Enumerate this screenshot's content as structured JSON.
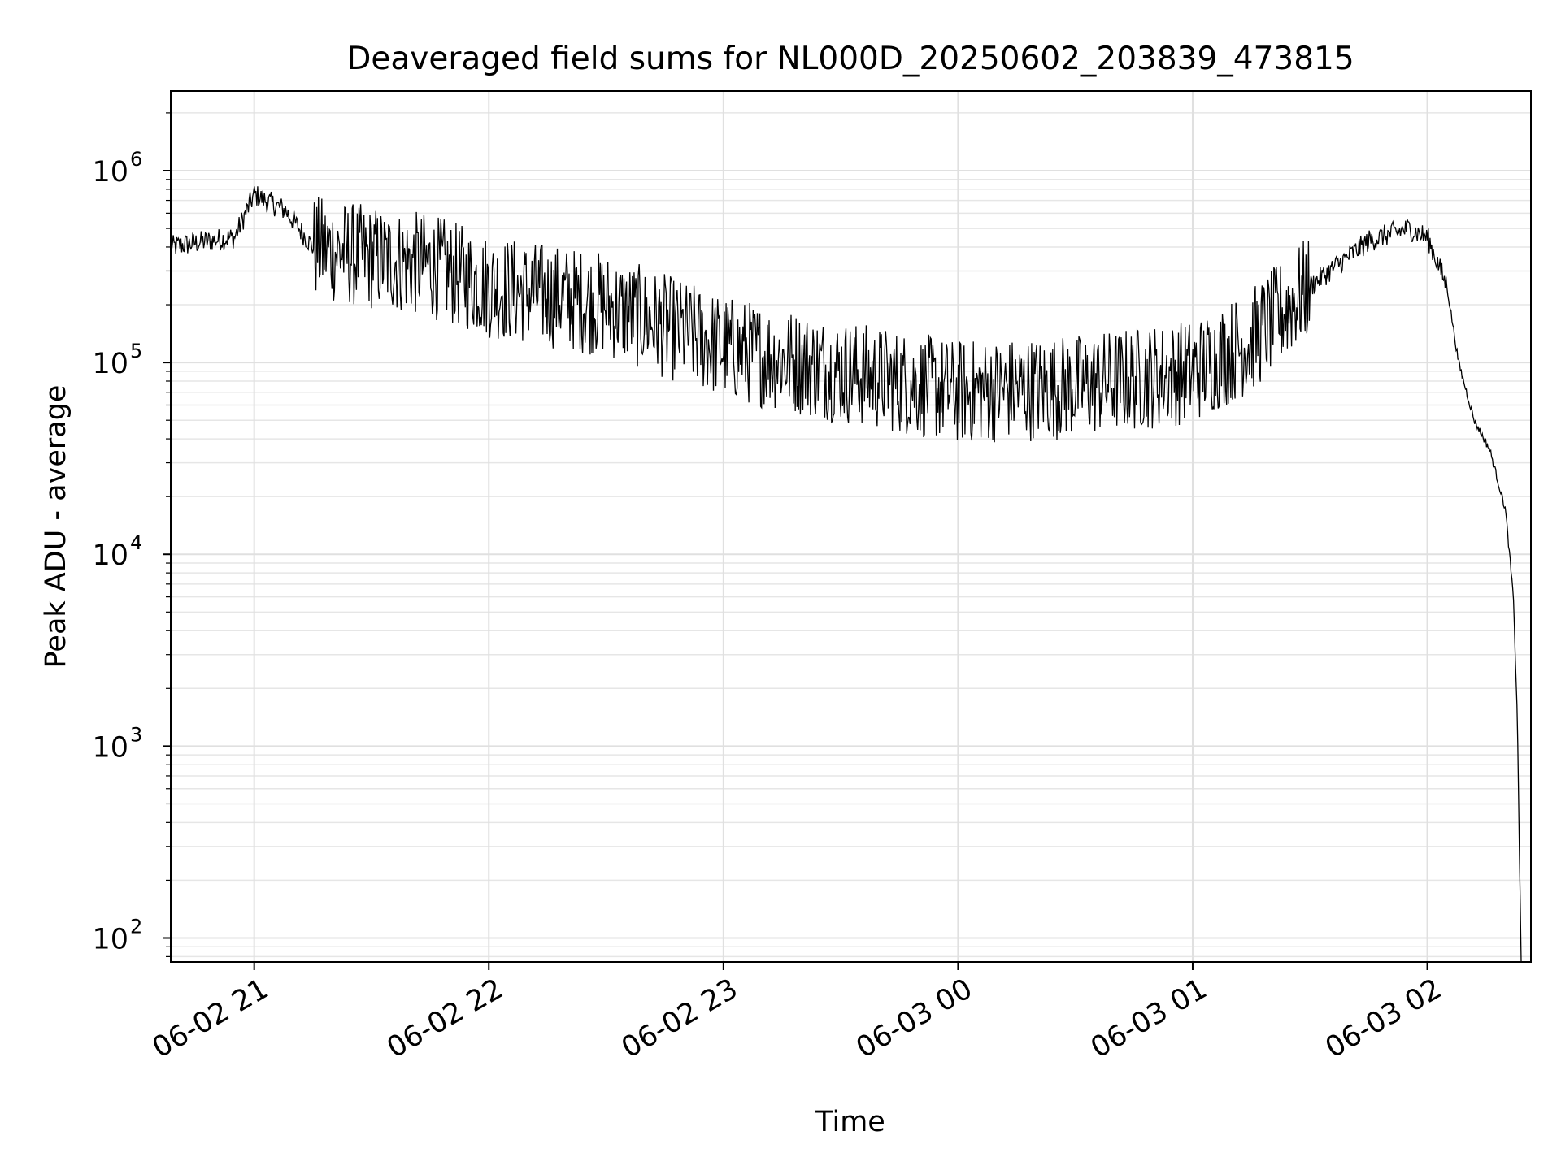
{
  "chart_data": {
    "type": "line",
    "title": "Deaveraged field sums for NL000D_20250602_203839_473815",
    "xlabel": "Time",
    "ylabel": "Peak ADU - average",
    "y_scale": "log",
    "ylim": [
      75,
      2600000
    ],
    "xlim": [
      "2025-06-02 20:38:39",
      "2025-06-03 02:26:30"
    ],
    "grid": true,
    "line_color": "#000000",
    "x_ticks": [
      {
        "t": "2025-06-02 21:00",
        "label": "06-02 21"
      },
      {
        "t": "2025-06-02 22:00",
        "label": "06-02 22"
      },
      {
        "t": "2025-06-02 23:00",
        "label": "06-02 23"
      },
      {
        "t": "2025-06-03 00:00",
        "label": "06-03 00"
      },
      {
        "t": "2025-06-03 01:00",
        "label": "06-03 01"
      },
      {
        "t": "2025-06-03 02:00",
        "label": "06-03 02"
      }
    ],
    "y_ticks": [
      {
        "value": 100,
        "base": "10",
        "exp": "2"
      },
      {
        "value": 1000,
        "base": "10",
        "exp": "3"
      },
      {
        "value": 10000,
        "base": "10",
        "exp": "4"
      },
      {
        "value": 100000,
        "base": "10",
        "exp": "5"
      },
      {
        "value": 1000000,
        "base": "10",
        "exp": "6"
      }
    ],
    "series": [
      {
        "points": [
          [
            "2025-06-02 20:38:39",
            400000
          ],
          [
            "2025-06-02 20:45",
            420000
          ],
          [
            "2025-06-02 20:55",
            450000
          ],
          [
            "2025-06-02 21:00",
            750000
          ],
          [
            "2025-06-02 21:08",
            620000
          ],
          [
            "2025-06-02 21:15",
            400000
          ],
          [
            "2025-06-02 21:30",
            350000
          ],
          [
            "2025-06-02 21:45",
            320000
          ],
          [
            "2025-06-02 22:00",
            250000
          ],
          [
            "2025-06-02 22:30",
            200000
          ],
          [
            "2025-06-02 23:00",
            120000
          ],
          [
            "2025-06-02 23:30",
            90000
          ],
          [
            "2025-06-03 00:00",
            70000
          ],
          [
            "2025-06-03 00:30",
            75000
          ],
          [
            "2025-06-03 01:00",
            90000
          ],
          [
            "2025-06-03 01:15",
            130000
          ],
          [
            "2025-06-03 01:30",
            250000
          ],
          [
            "2025-06-03 01:45",
            430000
          ],
          [
            "2025-06-03 01:55",
            500000
          ],
          [
            "2025-06-03 02:00",
            450000
          ],
          [
            "2025-06-03 02:05",
            250000
          ],
          [
            "2025-06-03 02:08",
            100000
          ],
          [
            "2025-06-03 02:12",
            50000
          ],
          [
            "2025-06-03 02:16",
            35000
          ],
          [
            "2025-06-03 02:20",
            17000
          ],
          [
            "2025-06-03 02:22",
            6000
          ],
          [
            "2025-06-03 02:23",
            1500
          ],
          [
            "2025-06-03 02:24",
            75
          ]
        ]
      }
    ]
  }
}
